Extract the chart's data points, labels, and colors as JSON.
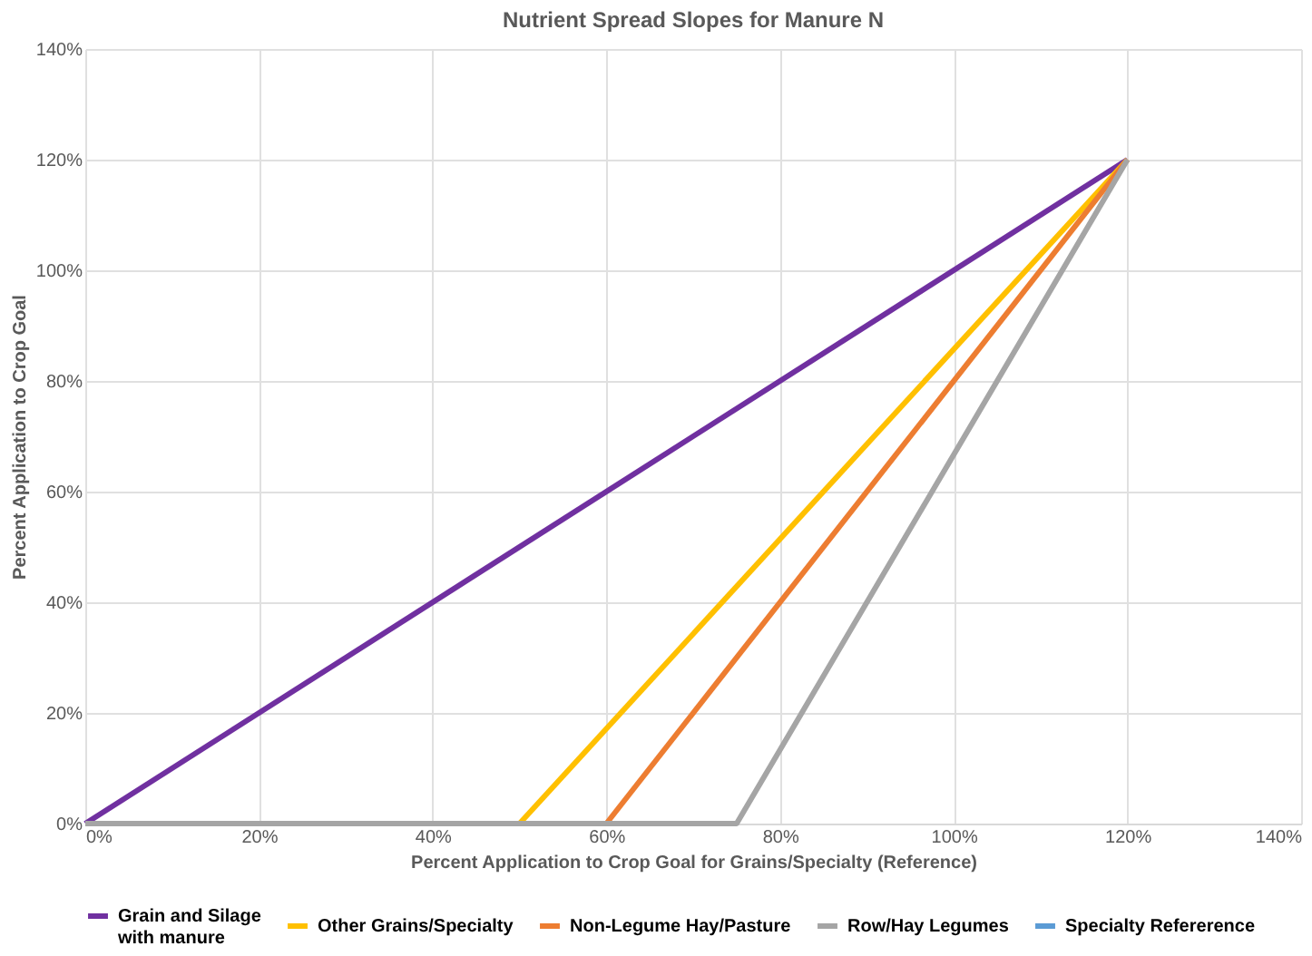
{
  "chart_data": {
    "type": "line",
    "title": "Nutrient Spread Slopes for Manure N",
    "xlabel": "Percent Application to Crop Goal for Grains/Specialty (Reference)",
    "ylabel": "Percent Application to Crop Goal",
    "series": [
      {
        "name": "Grain and Silage with manure",
        "color": "#7030a0",
        "x": [
          0,
          120
        ],
        "values": [
          0,
          120
        ]
      },
      {
        "name": "Other Grains/Specialty",
        "color": "#ffc000",
        "x": [
          50,
          120
        ],
        "values": [
          0,
          120
        ]
      },
      {
        "name": "Non-Legume Hay/Pasture",
        "color": "#ed7d31",
        "x": [
          60,
          120
        ],
        "values": [
          0,
          120
        ]
      },
      {
        "name": "Row/Hay Legumes",
        "color": "#a5a5a5",
        "x": [
          0,
          75,
          120
        ],
        "values": [
          0,
          0,
          120
        ]
      },
      {
        "name": "Specialty Refererence",
        "color": "#5b9bd5"
      }
    ],
    "xlim": [
      0,
      140
    ],
    "ylim": [
      0,
      140
    ],
    "xticks": [
      {
        "value": 0,
        "label": "0%"
      },
      {
        "value": 20,
        "label": "20%"
      },
      {
        "value": 40,
        "label": "40%"
      },
      {
        "value": 60,
        "label": "60%"
      },
      {
        "value": 80,
        "label": "80%"
      },
      {
        "value": 100,
        "label": "100%"
      },
      {
        "value": 120,
        "label": "120%"
      },
      {
        "value": 140,
        "label": "140%"
      }
    ],
    "yticks": [
      {
        "value": 0,
        "label": "0%"
      },
      {
        "value": 20,
        "label": "20%"
      },
      {
        "value": 40,
        "label": "40%"
      },
      {
        "value": 60,
        "label": "60%"
      },
      {
        "value": 80,
        "label": "80%"
      },
      {
        "value": 100,
        "label": "100%"
      },
      {
        "value": 120,
        "label": "120%"
      },
      {
        "value": 140,
        "label": "140%"
      }
    ],
    "grid": true,
    "legend": "bottom",
    "marker": "none",
    "line_style": "solid"
  }
}
